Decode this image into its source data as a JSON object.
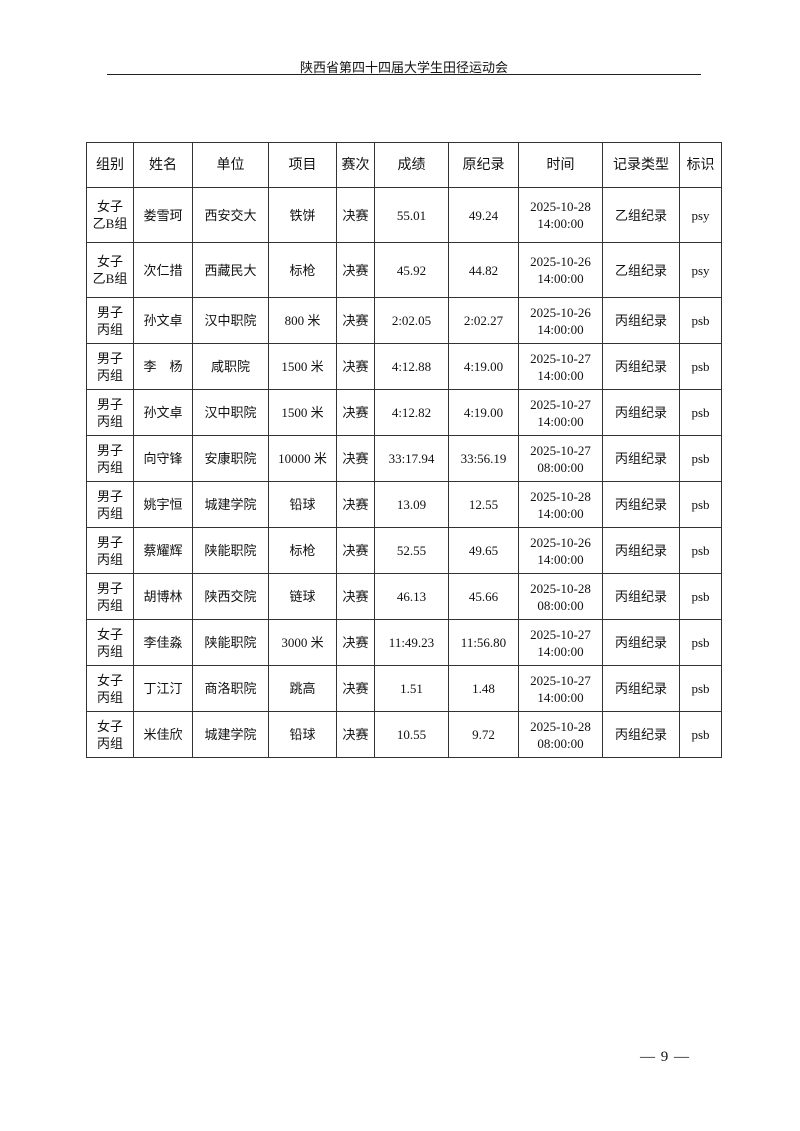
{
  "header": {
    "title": "陕西省第四十四届大学生田径运动会"
  },
  "table": {
    "columns": [
      "组别",
      "姓名",
      "单位",
      "项目",
      "赛次",
      "成绩",
      "原纪录",
      "时间",
      "记录类型",
      "标识"
    ],
    "rows": [
      {
        "group": "女子乙B组",
        "name": "娄雪珂",
        "unit": "西安交大",
        "event": "铁饼",
        "round": "决赛",
        "result": "55.01",
        "old_record": "49.24",
        "date": "2025-10-28",
        "time": "14:00:00",
        "record_type": "乙组纪录",
        "mark": "psy"
      },
      {
        "group": "女子乙B组",
        "name": "次仁措",
        "unit": "西藏民大",
        "event": "标枪",
        "round": "决赛",
        "result": "45.92",
        "old_record": "44.82",
        "date": "2025-10-26",
        "time": "14:00:00",
        "record_type": "乙组纪录",
        "mark": "psy"
      },
      {
        "group": "男子丙组",
        "name": "孙文卓",
        "unit": "汉中职院",
        "event": "800 米",
        "round": "决赛",
        "result": "2:02.05",
        "old_record": "2:02.27",
        "date": "2025-10-26",
        "time": "14:00:00",
        "record_type": "丙组纪录",
        "mark": "psb"
      },
      {
        "group": "男子丙组",
        "name": "李　杨",
        "unit": "咸职院",
        "event": "1500 米",
        "round": "决赛",
        "result": "4:12.88",
        "old_record": "4:19.00",
        "date": "2025-10-27",
        "time": "14:00:00",
        "record_type": "丙组纪录",
        "mark": "psb"
      },
      {
        "group": "男子丙组",
        "name": "孙文卓",
        "unit": "汉中职院",
        "event": "1500 米",
        "round": "决赛",
        "result": "4:12.82",
        "old_record": "4:19.00",
        "date": "2025-10-27",
        "time": "14:00:00",
        "record_type": "丙组纪录",
        "mark": "psb"
      },
      {
        "group": "男子丙组",
        "name": "向守锋",
        "unit": "安康职院",
        "event": "10000 米",
        "round": "决赛",
        "result": "33:17.94",
        "old_record": "33:56.19",
        "date": "2025-10-27",
        "time": "08:00:00",
        "record_type": "丙组纪录",
        "mark": "psb"
      },
      {
        "group": "男子丙组",
        "name": "姚宇恒",
        "unit": "城建学院",
        "event": "铅球",
        "round": "决赛",
        "result": "13.09",
        "old_record": "12.55",
        "date": "2025-10-28",
        "time": "14:00:00",
        "record_type": "丙组纪录",
        "mark": "psb"
      },
      {
        "group": "男子丙组",
        "name": "蔡耀辉",
        "unit": "陕能职院",
        "event": "标枪",
        "round": "决赛",
        "result": "52.55",
        "old_record": "49.65",
        "date": "2025-10-26",
        "time": "14:00:00",
        "record_type": "丙组纪录",
        "mark": "psb"
      },
      {
        "group": "男子丙组",
        "name": "胡博林",
        "unit": "陕西交院",
        "event": "链球",
        "round": "决赛",
        "result": "46.13",
        "old_record": "45.66",
        "date": "2025-10-28",
        "time": "08:00:00",
        "record_type": "丙组纪录",
        "mark": "psb"
      },
      {
        "group": "女子丙组",
        "name": "李佳淼",
        "unit": "陕能职院",
        "event": "3000 米",
        "round": "决赛",
        "result": "11:49.23",
        "old_record": "11:56.80",
        "date": "2025-10-27",
        "time": "14:00:00",
        "record_type": "丙组纪录",
        "mark": "psb"
      },
      {
        "group": "女子丙组",
        "name": "丁江汀",
        "unit": "商洛职院",
        "event": "跳高",
        "round": "决赛",
        "result": "1.51",
        "old_record": "1.48",
        "date": "2025-10-27",
        "time": "14:00:00",
        "record_type": "丙组纪录",
        "mark": "psb"
      },
      {
        "group": "女子丙组",
        "name": "米佳欣",
        "unit": "城建学院",
        "event": "铅球",
        "round": "决赛",
        "result": "10.55",
        "old_record": "9.72",
        "date": "2025-10-28",
        "time": "08:00:00",
        "record_type": "丙组纪录",
        "mark": "psb"
      }
    ]
  },
  "footer": {
    "page_number": "— 9 —"
  }
}
